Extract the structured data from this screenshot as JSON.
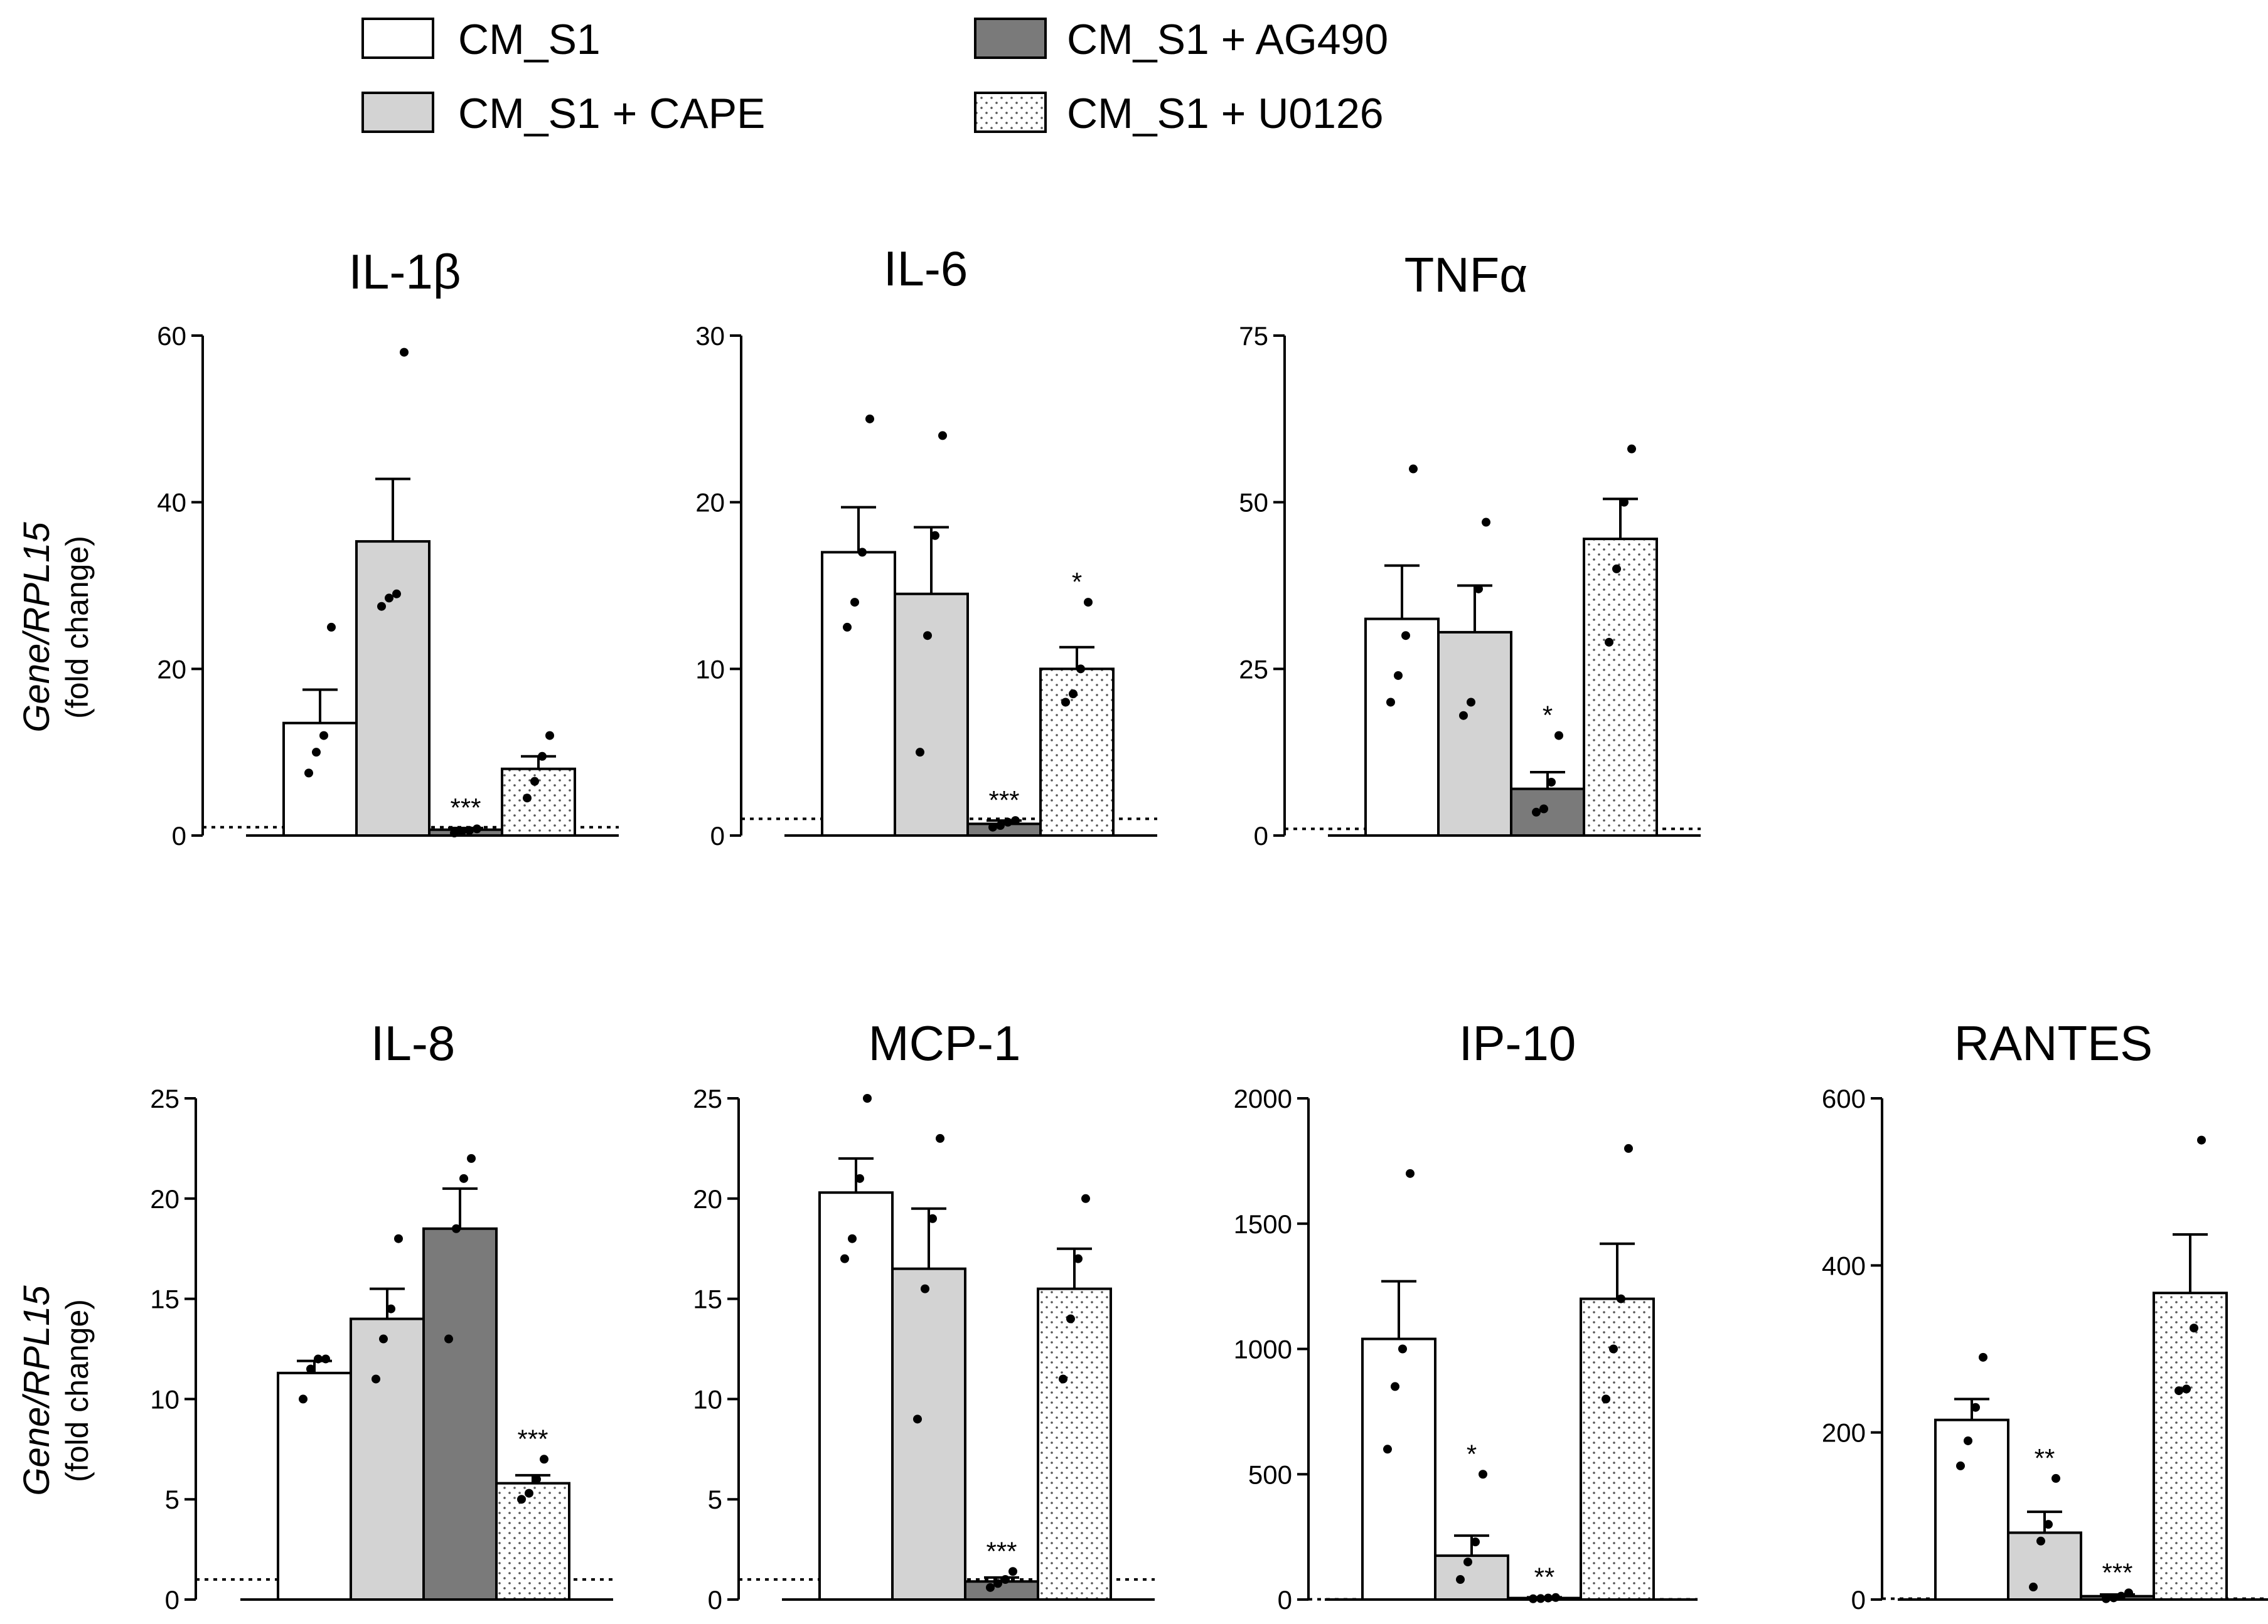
{
  "legend": {
    "items": [
      {
        "label": "CM_S1",
        "fill": "white"
      },
      {
        "label": "CM_S1 + CAPE",
        "fill": "light"
      },
      {
        "label": "CM_S1 + AG490",
        "fill": "dark"
      },
      {
        "label": "CM_S1 + U0126",
        "fill": "dotted"
      }
    ]
  },
  "y_axis_label": {
    "gene": "Gene/RPL15",
    "unit": "(fold change)"
  },
  "colors": {
    "light": "#d3d3d3",
    "dark": "#7a7a7a",
    "white": "#ffffff",
    "axis": "#000000"
  },
  "chart_data": [
    {
      "type": "bar",
      "title": "IL-1β",
      "categories": [
        "CM_S1",
        "CM_S1 + CAPE",
        "CM_S1 + AG490",
        "CM_S1 + U0126"
      ],
      "ylim": [
        0,
        60
      ],
      "yticks": [
        0,
        20,
        40,
        60
      ],
      "baseline": 1,
      "values": [
        13.5,
        35.3,
        0.7,
        8.0
      ],
      "errors": [
        4.0,
        7.5,
        0.2,
        1.5
      ],
      "points": [
        [
          7.5,
          10,
          12,
          25
        ],
        [
          27.5,
          28.5,
          29,
          58
        ],
        [
          0.3,
          0.5,
          0.6,
          0.8
        ],
        [
          4.5,
          6.5,
          9.5,
          12
        ]
      ],
      "significance": [
        "",
        "",
        "***",
        ""
      ]
    },
    {
      "type": "bar",
      "title": "IL-6",
      "categories": [
        "CM_S1",
        "CM_S1 + CAPE",
        "CM_S1 + AG490",
        "CM_S1 + U0126"
      ],
      "ylim": [
        0,
        30
      ],
      "yticks": [
        0,
        10,
        20,
        30
      ],
      "baseline": 1,
      "values": [
        17.0,
        14.5,
        0.7,
        10.0
      ],
      "errors": [
        2.7,
        4.0,
        0.2,
        1.3
      ],
      "points": [
        [
          12.5,
          14,
          17,
          25
        ],
        [
          5,
          12,
          18,
          24
        ],
        [
          0.5,
          0.6,
          0.8,
          0.9
        ],
        [
          8,
          8.5,
          10,
          14
        ]
      ],
      "significance": [
        "",
        "",
        "***",
        "*"
      ]
    },
    {
      "type": "bar",
      "title": "TNFα",
      "categories": [
        "CM_S1",
        "CM_S1 + CAPE",
        "CM_S1 + AG490",
        "CM_S1 + U0126"
      ],
      "ylim": [
        0,
        75
      ],
      "yticks": [
        0,
        25,
        50,
        75
      ],
      "baseline": 1,
      "values": [
        32.5,
        30.5,
        7.0,
        44.5
      ],
      "errors": [
        8.0,
        7.0,
        2.5,
        6.0
      ],
      "points": [
        [
          20,
          24,
          30,
          55
        ],
        [
          18,
          20,
          37,
          47
        ],
        [
          3.5,
          4,
          8,
          15
        ],
        [
          29,
          40,
          50,
          58
        ]
      ],
      "significance": [
        "",
        "",
        "*",
        ""
      ]
    },
    {
      "type": "bar",
      "title": "IL-8",
      "categories": [
        "CM_S1",
        "CM_S1 + CAPE",
        "CM_S1 + AG490",
        "CM_S1 + U0126"
      ],
      "ylim": [
        0,
        25
      ],
      "yticks": [
        0,
        5,
        10,
        15,
        20,
        25
      ],
      "baseline": 1,
      "values": [
        11.3,
        14.0,
        18.5,
        5.8
      ],
      "errors": [
        0.6,
        1.5,
        2.0,
        0.4
      ],
      "points": [
        [
          10,
          11.5,
          12,
          12
        ],
        [
          11,
          13,
          14.5,
          18
        ],
        [
          13,
          18.5,
          21,
          22
        ],
        [
          5,
          5.3,
          6,
          7
        ]
      ],
      "significance": [
        "",
        "",
        "",
        "***"
      ]
    },
    {
      "type": "bar",
      "title": "MCP-1",
      "categories": [
        "CM_S1",
        "CM_S1 + CAPE",
        "CM_S1 + AG490",
        "CM_S1 + U0126"
      ],
      "ylim": [
        0,
        25
      ],
      "yticks": [
        0,
        5,
        10,
        15,
        20,
        25
      ],
      "baseline": 1,
      "values": [
        20.3,
        16.5,
        0.9,
        15.5
      ],
      "errors": [
        1.7,
        3.0,
        0.2,
        2.0
      ],
      "points": [
        [
          17,
          18,
          21,
          25
        ],
        [
          9,
          15.5,
          19,
          23
        ],
        [
          0.6,
          0.8,
          1.0,
          1.4
        ],
        [
          11,
          14,
          17,
          20
        ]
      ],
      "significance": [
        "",
        "",
        "***",
        ""
      ]
    },
    {
      "type": "bar",
      "title": "IP-10",
      "categories": [
        "CM_S1",
        "CM_S1 + CAPE",
        "CM_S1 + AG490",
        "CM_S1 + U0126"
      ],
      "ylim": [
        0,
        2000
      ],
      "yticks": [
        0,
        500,
        1000,
        1500,
        2000
      ],
      "baseline": 1,
      "values": [
        1040,
        175,
        6,
        1200
      ],
      "errors": [
        230,
        80,
        3,
        220
      ],
      "points": [
        [
          600,
          850,
          1000,
          1700
        ],
        [
          80,
          150,
          230,
          500
        ],
        [
          3,
          4,
          6,
          8
        ],
        [
          800,
          1000,
          1200,
          1800
        ]
      ],
      "significance": [
        "",
        "*",
        "**",
        ""
      ]
    },
    {
      "type": "bar",
      "title": "RANTES",
      "categories": [
        "CM_S1",
        "CM_S1 + CAPE",
        "CM_S1 + AG490",
        "CM_S1 + U0126"
      ],
      "ylim": [
        0,
        600
      ],
      "yticks": [
        0,
        200,
        400,
        600
      ],
      "baseline": 1,
      "values": [
        215,
        80,
        4,
        367
      ],
      "errors": [
        25,
        25,
        2,
        70
      ],
      "points": [
        [
          160,
          190,
          230,
          290
        ],
        [
          15,
          70,
          90,
          145
        ],
        [
          1,
          2,
          4,
          8
        ],
        [
          250,
          252,
          325,
          550
        ]
      ],
      "significance": [
        "",
        "**",
        "***",
        ""
      ]
    }
  ]
}
